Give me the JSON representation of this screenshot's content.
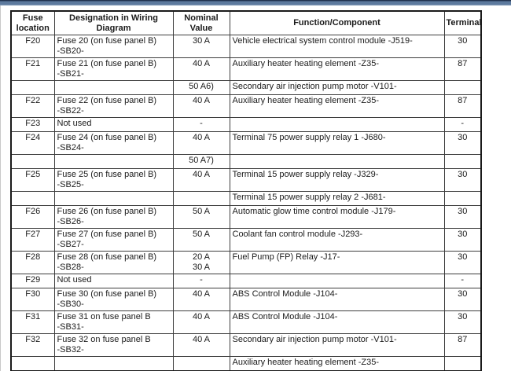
{
  "top_bar": {
    "color_edge_top": "#22334e",
    "color_main": "#5d7a9e",
    "color_edge_bottom": "#93a9c0"
  },
  "table": {
    "headers": {
      "fuse_location": "Fuse location",
      "designation": "Designation in Wiring Diagram",
      "nominal": "Nominal Value",
      "function": "Function/Component",
      "terminal": "Terminal"
    },
    "rows": [
      {
        "fuse": "F20",
        "designation": "Fuse 20 (on fuse panel B)\n-SB20-",
        "nominal": "30 A",
        "function": "Vehicle electrical system control module -J519-",
        "terminal": "30"
      },
      {
        "fuse": "F21",
        "designation": "Fuse 21 (on fuse panel B)\n-SB21-",
        "nominal": "40 A",
        "function": "Auxiliary heater heating element -Z35-",
        "terminal": "87"
      },
      {
        "fuse": "",
        "designation": "",
        "nominal": "50 A6)",
        "function": "Secondary air injection pump motor -V101-",
        "terminal": ""
      },
      {
        "fuse": "F22",
        "designation": "Fuse 22 (on fuse panel B)\n-SB22-",
        "nominal": "40 A",
        "function": "Auxiliary heater heating element -Z35-",
        "terminal": "87"
      },
      {
        "fuse": "F23",
        "designation": "Not used",
        "nominal": "-",
        "function": "",
        "terminal": "-"
      },
      {
        "fuse": "F24",
        "designation": "Fuse 24 (on fuse panel B)\n-SB24-",
        "nominal": "40 A",
        "function": "Terminal 75 power supply relay 1 -J680-",
        "terminal": "30"
      },
      {
        "fuse": "",
        "designation": "",
        "nominal": "50 A7)",
        "function": "",
        "terminal": ""
      },
      {
        "fuse": "F25",
        "designation": "Fuse 25 (on fuse panel B)\n-SB25-",
        "nominal": "40 A",
        "function": "Terminal 15 power supply relay -J329-",
        "terminal": "30"
      },
      {
        "fuse": "",
        "designation": "",
        "nominal": "",
        "function": "Terminal 15 power supply relay 2 -J681-",
        "terminal": ""
      },
      {
        "fuse": "F26",
        "designation": "Fuse 26 (on fuse panel B)\n-SB26-",
        "nominal": "50 A",
        "function": "Automatic glow time control module -J179-",
        "terminal": "30"
      },
      {
        "fuse": "F27",
        "designation": "Fuse 27 (on fuse panel B)\n-SB27-",
        "nominal": "50 A",
        "function": "Coolant fan control module -J293-",
        "terminal": "30"
      },
      {
        "fuse": "F28",
        "designation": "Fuse 28 (on fuse panel B)\n-SB28-",
        "nominal": "20 A\n30 A",
        "function": "Fuel Pump (FP) Relay -J17-",
        "terminal": "30"
      },
      {
        "fuse": "F29",
        "designation": "Not used",
        "nominal": "-",
        "function": "",
        "terminal": "-"
      },
      {
        "fuse": "F30",
        "designation": "Fuse 30 (on fuse panel B)\n-SB30-",
        "nominal": "40 A",
        "function": "ABS Control Module -J104-",
        "terminal": "30"
      },
      {
        "fuse": "F31",
        "designation": "Fuse 31 on fuse panel B\n-SB31-",
        "nominal": "40 A",
        "function": "ABS Control Module -J104-",
        "terminal": "30"
      },
      {
        "fuse": "F32",
        "designation": "Fuse 32 on fuse panel B\n-SB32-",
        "nominal": "40 A",
        "function": "Secondary air injection pump motor -V101-",
        "terminal": "87"
      },
      {
        "fuse": "",
        "designation": "",
        "nominal": "",
        "function": "Auxiliary heater heating element -Z35-",
        "terminal": ""
      }
    ]
  }
}
